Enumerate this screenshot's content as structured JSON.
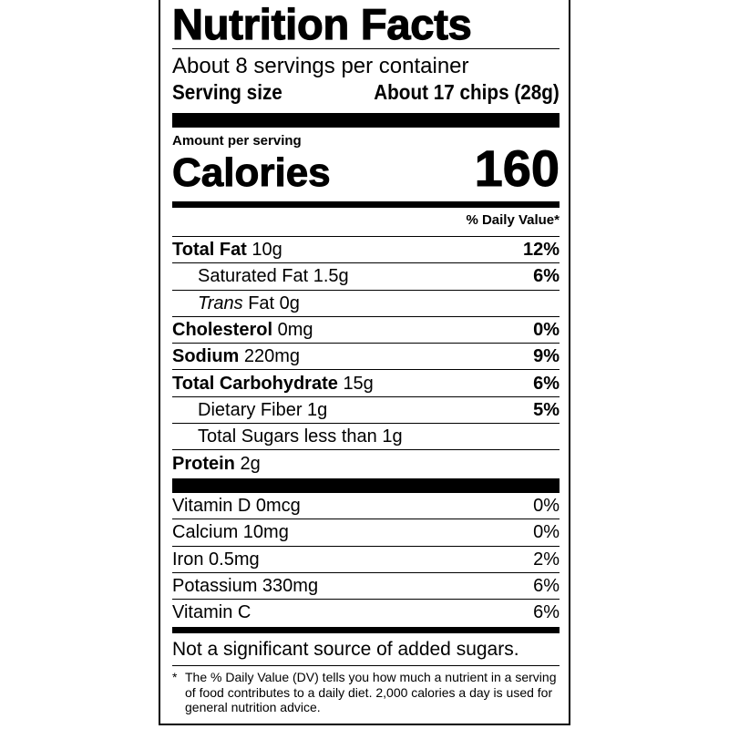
{
  "title": "Nutrition Facts",
  "servings_per_container": "About 8 servings per container",
  "serving_size": {
    "label": "Serving size",
    "value": "About 17 chips (28g)"
  },
  "amount_per_serving": "Amount per serving",
  "calories": {
    "label": "Calories",
    "value": "160"
  },
  "daily_value_header": "% Daily Value*",
  "nutrients": [
    {
      "name": "Total Fat",
      "amount": "10g",
      "dv": "12%",
      "bold": true,
      "indent": false
    },
    {
      "name": "Saturated Fat 1.5g",
      "amount": "",
      "dv": "6%",
      "bold": false,
      "indent": true
    },
    {
      "name_italic": "Trans",
      "name": " Fat 0g",
      "amount": "",
      "dv": "",
      "bold": false,
      "indent": true
    },
    {
      "name": "Cholesterol",
      "amount": "0mg",
      "dv": "0%",
      "bold": true,
      "indent": false
    },
    {
      "name": "Sodium",
      "amount": "220mg",
      "dv": "9%",
      "bold": true,
      "indent": false
    },
    {
      "name": "Total Carbohydrate",
      "amount": "15g",
      "dv": "6%",
      "bold": true,
      "indent": false
    },
    {
      "name": "Dietary Fiber 1g",
      "amount": "",
      "dv": "5%",
      "bold": false,
      "indent": true
    },
    {
      "name": "Total Sugars less than 1g",
      "amount": "",
      "dv": "",
      "bold": false,
      "indent": true
    },
    {
      "name": "Protein",
      "amount": "2g",
      "dv": "",
      "bold": true,
      "indent": false
    }
  ],
  "vitamins": [
    {
      "name": "Vitamin D 0mcg",
      "dv": "0%"
    },
    {
      "name": "Calcium 10mg",
      "dv": "0%"
    },
    {
      "name": "Iron 0.5mg",
      "dv": "2%"
    },
    {
      "name": "Potassium 330mg",
      "dv": "6%"
    },
    {
      "name": "Vitamin C",
      "dv": "6%"
    }
  ],
  "added_sugars_note": "Not a significant source of added sugars.",
  "footnote": {
    "star": "*",
    "text": "The % Daily Value (DV) tells you how much a nutrient in a serving of food contributes to a daily diet. 2,000 calories a day is used for general nutrition advice."
  }
}
